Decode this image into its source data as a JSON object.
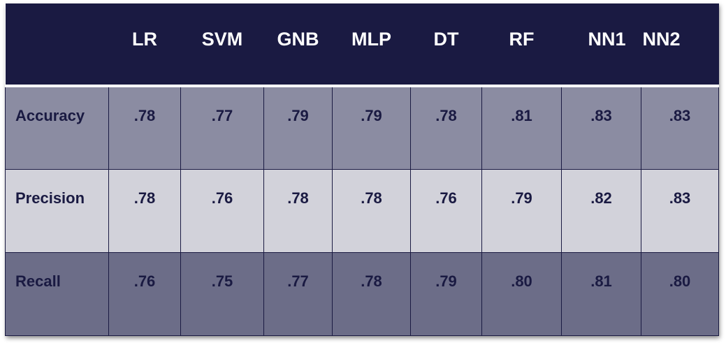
{
  "chart_data": {
    "type": "table",
    "columns": [
      "LR",
      "SVM",
      "GNB",
      "MLP",
      "DT",
      "RF",
      "NN1",
      "NN2"
    ],
    "rows": [
      {
        "label": "Accuracy",
        "values": [
          ".78",
          ".77",
          ".79",
          ".79",
          ".78",
          ".81",
          ".83",
          ".83"
        ]
      },
      {
        "label": "Precision",
        "values": [
          ".78",
          ".76",
          ".78",
          ".78",
          ".76",
          ".79",
          ".82",
          ".83"
        ]
      },
      {
        "label": "Recall",
        "values": [
          ".76",
          ".75",
          ".77",
          ".78",
          ".79",
          ".80",
          ".81",
          ".80"
        ]
      }
    ],
    "colors": {
      "header_bg": "#1a1a42",
      "header_text": "#ffffff",
      "row_bg": [
        "#8b8ca2",
        "#d2d2da",
        "#6c6d88"
      ],
      "cell_text": "#1a1a42"
    }
  }
}
